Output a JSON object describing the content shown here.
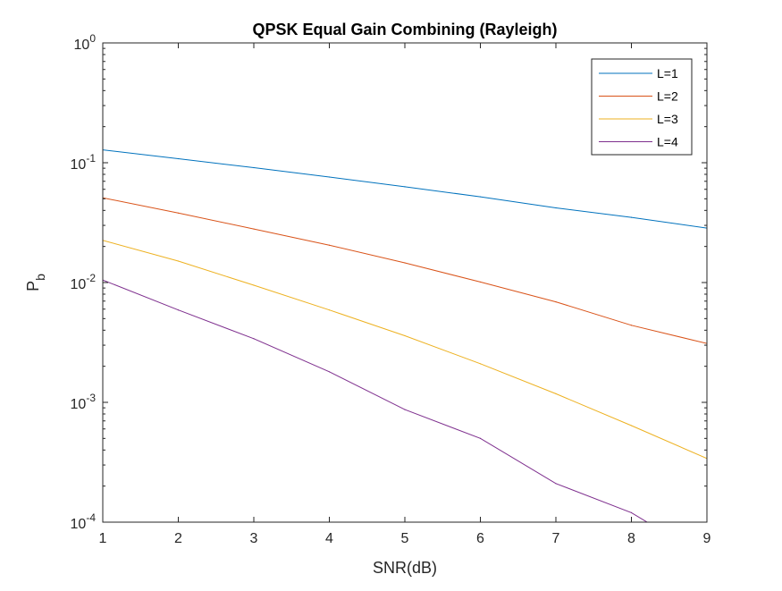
{
  "chart_data": {
    "type": "line",
    "title": "QPSK Equal Gain Combining (Rayleigh)",
    "xlabel": "SNR(dB)",
    "ylabel": {
      "main": "P",
      "sub": "b"
    },
    "xlim": [
      1,
      9
    ],
    "ylim": [
      0.0001,
      1
    ],
    "yscale": "log",
    "x_ticks": [
      "1",
      "2",
      "3",
      "4",
      "5",
      "6",
      "7",
      "8",
      "9"
    ],
    "y_ticks": [
      {
        "value": 0.0001,
        "base": "10",
        "exp": "-4"
      },
      {
        "value": 0.001,
        "base": "10",
        "exp": "-3"
      },
      {
        "value": 0.01,
        "base": "10",
        "exp": "-2"
      },
      {
        "value": 0.1,
        "base": "10",
        "exp": "-1"
      },
      {
        "value": 1,
        "base": "10",
        "exp": "0"
      }
    ],
    "grid": false,
    "legend_position": "top-right",
    "x": [
      1,
      2,
      3,
      4,
      5,
      6,
      7,
      8,
      9
    ],
    "series": [
      {
        "name": "L=1",
        "color": "#0072BD",
        "values": [
          0.128,
          0.108,
          0.091,
          0.076,
          0.063,
          0.052,
          0.042,
          0.035,
          0.0285
        ]
      },
      {
        "name": "L=2",
        "color": "#D95319",
        "values": [
          0.051,
          0.038,
          0.028,
          0.0205,
          0.0146,
          0.0101,
          0.0069,
          0.0044,
          0.0031
        ]
      },
      {
        "name": "L=3",
        "color": "#EDB120",
        "values": [
          0.0225,
          0.0151,
          0.0095,
          0.0059,
          0.0036,
          0.0021,
          0.00118,
          0.00064,
          0.00034
        ]
      },
      {
        "name": "L=4",
        "color": "#7E2F8E",
        "values": [
          0.0105,
          0.0059,
          0.0034,
          0.0018,
          0.00087,
          0.0005,
          0.00021,
          0.00012,
          5e-05
        ]
      }
    ]
  }
}
